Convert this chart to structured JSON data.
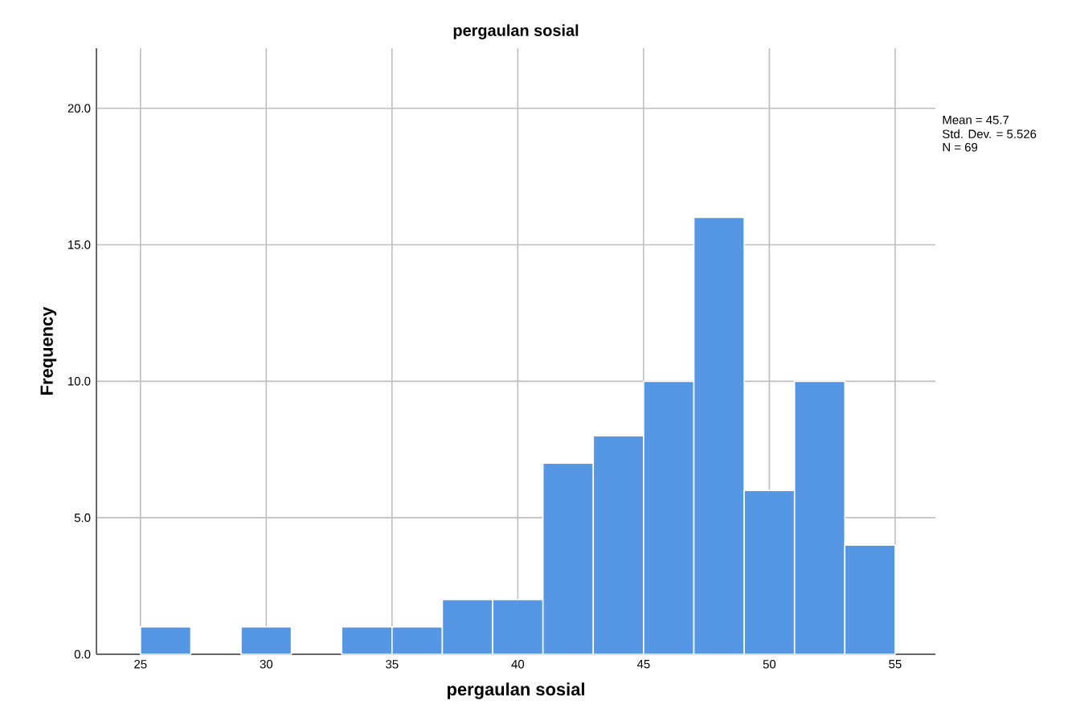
{
  "chart_data": {
    "type": "histogram",
    "title": "pergaulan sosial",
    "xlabel": "pergaulan sosial",
    "ylabel": "Frequency",
    "bins": [
      25,
      27,
      29,
      31,
      33,
      35,
      37,
      39,
      41,
      43,
      45,
      47,
      49,
      51,
      53,
      55
    ],
    "values": [
      1,
      0,
      1,
      0,
      1,
      1,
      2,
      2,
      7,
      8,
      10,
      16,
      6,
      10,
      4
    ],
    "color": "#5596e5",
    "xlim": [
      23.25,
      56.6
    ],
    "ylim": [
      0,
      22.2
    ],
    "xticks": [
      25,
      30,
      35,
      40,
      45,
      50,
      55
    ],
    "yticks": [
      {
        "value": 0,
        "label": "0.0"
      },
      {
        "value": 5,
        "label": "5.0"
      },
      {
        "value": 10,
        "label": "10.0"
      },
      {
        "value": 15,
        "label": "15.0"
      },
      {
        "value": 20,
        "label": "20.0"
      }
    ],
    "grid": true,
    "annotations": [
      "Mean = 45.7",
      "Std. Dev. = 5.526",
      "N = 69"
    ]
  }
}
